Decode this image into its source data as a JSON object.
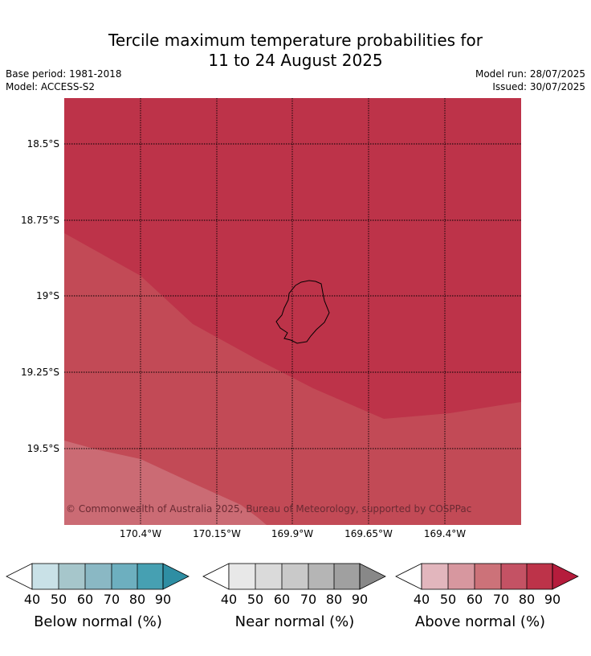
{
  "title_line1": "Tercile maximum temperature probabilities for",
  "title_line2": "11 to 24 August 2025",
  "base_period": "Base period: 1981-2018",
  "model": "Model: ACCESS-S2",
  "model_run": "Model run: 28/07/2025",
  "issued": "Issued: 30/07/2025",
  "copyright": "© Commonwealth of Australia 2025, Bureau of Meteorology, supported by COSPPac",
  "map": {
    "lat_labels": [
      "18.5°S",
      "18.75°S",
      "19°S",
      "19.25°S",
      "19.5°S"
    ],
    "lon_labels": [
      "170.4°W",
      "170.15°W",
      "169.9°W",
      "169.65°W",
      "169.4°W"
    ],
    "zones": [
      {
        "name": "above-normal-80-90",
        "color": "#bd3349"
      },
      {
        "name": "above-normal-70-80",
        "color": "#c24a56"
      },
      {
        "name": "above-normal-60-70",
        "color": "#cb6b74"
      }
    ]
  },
  "colorbars": [
    {
      "label": "Below normal (%)",
      "ticks": [
        "40",
        "50",
        "60",
        "70",
        "80",
        "90"
      ],
      "colors": [
        "#ffffff",
        "#c9e1e7",
        "#a6c6cb",
        "#8ab8c4",
        "#6dafbf",
        "#46a0b2",
        "#2e8ea3"
      ]
    },
    {
      "label": "Near normal (%)",
      "ticks": [
        "40",
        "50",
        "60",
        "70",
        "80",
        "90"
      ],
      "colors": [
        "#ffffff",
        "#e8e8e8",
        "#dadada",
        "#c9c9c9",
        "#b5b5b5",
        "#a0a0a0",
        "#888888"
      ]
    },
    {
      "label": "Above normal (%)",
      "ticks": [
        "40",
        "50",
        "60",
        "70",
        "80",
        "90"
      ],
      "colors": [
        "#ffffff",
        "#e2b6bd",
        "#d7979f",
        "#cc7279",
        "#c45264",
        "#bd3349",
        "#b51c3c"
      ]
    }
  ]
}
